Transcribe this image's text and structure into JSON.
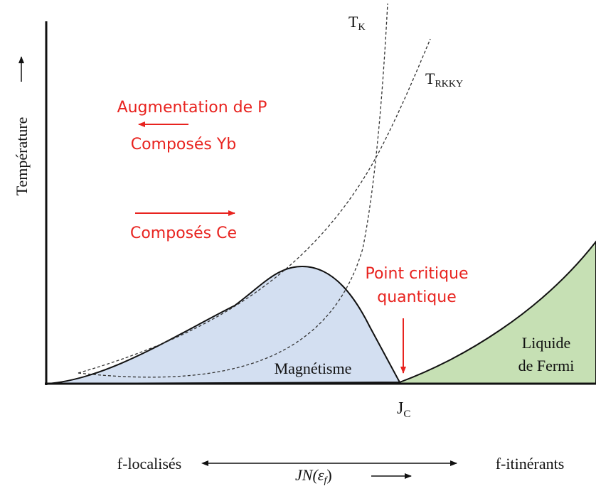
{
  "labels": {
    "tk": {
      "main": "T",
      "sub": "K"
    },
    "trkky": {
      "main": "T",
      "sub": "RKKY"
    },
    "y_axis": "Température",
    "pressure": "Augmentation de P",
    "yb": "Composés Yb",
    "ce": "Composés Ce",
    "qcp_line1": "Point critique",
    "qcp_line2": "quantique",
    "magnetism": "Magnétisme",
    "fermi_line1": "Liquide",
    "fermi_line2": "de Fermi",
    "jc": {
      "main": "J",
      "sub": "C"
    },
    "localized": "f-localisés",
    "itinerant": "f-itinérants",
    "x_axis": {
      "main": "JN(ε",
      "sub": "f",
      "end": ")"
    }
  }
}
